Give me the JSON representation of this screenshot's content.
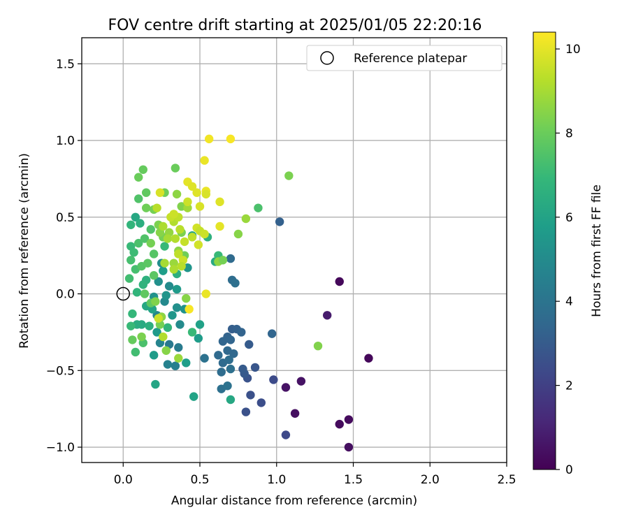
{
  "chart_data": {
    "type": "scatter",
    "title": "FOV centre drift starting at 2025/01/05 22:20:16",
    "xlabel": "Angular distance from reference (arcmin)",
    "ylabel": "Rotation from reference (arcmin)",
    "xlim": [
      -0.27,
      2.5
    ],
    "ylim": [
      -1.1,
      1.67
    ],
    "xticks": [
      0.0,
      0.5,
      1.0,
      1.5,
      2.0,
      2.5
    ],
    "xtick_labels": [
      "0.0",
      "0.5",
      "1.0",
      "1.5",
      "2.0",
      "2.5"
    ],
    "yticks": [
      -1.0,
      -0.5,
      0.0,
      0.5,
      1.0,
      1.5
    ],
    "ytick_labels": [
      "−1.0",
      "−0.5",
      "0.0",
      "0.5",
      "1.0",
      "1.5"
    ],
    "grid": true,
    "legend": {
      "position": "top-right",
      "entries": [
        {
          "label": "Reference platepar",
          "marker": "open-circle",
          "x": 0.0,
          "y": 0.0
        }
      ]
    },
    "colorbar": {
      "label": "Hours from first FF file",
      "range": [
        0,
        10.4
      ],
      "ticks": [
        0,
        2,
        4,
        6,
        8,
        10
      ],
      "tick_labels": [
        "0",
        "2",
        "4",
        "6",
        "8",
        "10"
      ],
      "colormap": "viridis",
      "stops": [
        "#440154",
        "#482878",
        "#3e4989",
        "#31688e",
        "#26828e",
        "#1f9e89",
        "#35b779",
        "#6ece58",
        "#b5de2b",
        "#fde725"
      ]
    },
    "points": [
      {
        "x": 1.41,
        "y": 0.08,
        "t": 0.2
      },
      {
        "x": 1.6,
        "y": -0.42,
        "t": 0.2
      },
      {
        "x": 1.47,
        "y": -0.82,
        "t": 0.3
      },
      {
        "x": 1.41,
        "y": -0.85,
        "t": 0.3
      },
      {
        "x": 1.47,
        "y": -1.0,
        "t": 0.4
      },
      {
        "x": 1.12,
        "y": -0.78,
        "t": 0.4
      },
      {
        "x": 1.16,
        "y": -0.57,
        "t": 0.5
      },
      {
        "x": 1.06,
        "y": -0.61,
        "t": 0.5
      },
      {
        "x": 1.33,
        "y": -0.14,
        "t": 0.8
      },
      {
        "x": 1.06,
        "y": -0.92,
        "t": 2.3
      },
      {
        "x": 0.98,
        "y": -0.56,
        "t": 2.4
      },
      {
        "x": 0.9,
        "y": -0.71,
        "t": 2.5
      },
      {
        "x": 0.83,
        "y": -0.66,
        "t": 2.6
      },
      {
        "x": 0.8,
        "y": -0.77,
        "t": 2.6
      },
      {
        "x": 0.81,
        "y": -0.55,
        "t": 2.7
      },
      {
        "x": 0.86,
        "y": -0.48,
        "t": 2.8
      },
      {
        "x": 0.79,
        "y": -0.52,
        "t": 2.9
      },
      {
        "x": 0.78,
        "y": -0.49,
        "t": 3.0
      },
      {
        "x": 0.82,
        "y": -0.33,
        "t": 3.0
      },
      {
        "x": 0.71,
        "y": -0.23,
        "t": 3.1
      },
      {
        "x": 0.74,
        "y": -0.23,
        "t": 3.2
      },
      {
        "x": 0.77,
        "y": -0.25,
        "t": 3.3
      },
      {
        "x": 0.68,
        "y": -0.28,
        "t": 3.3
      },
      {
        "x": 0.65,
        "y": -0.31,
        "t": 3.4
      },
      {
        "x": 0.7,
        "y": -0.3,
        "t": 3.4
      },
      {
        "x": 0.72,
        "y": -0.39,
        "t": 3.5
      },
      {
        "x": 0.68,
        "y": -0.37,
        "t": 3.5
      },
      {
        "x": 0.62,
        "y": -0.4,
        "t": 3.6
      },
      {
        "x": 0.65,
        "y": -0.45,
        "t": 3.6
      },
      {
        "x": 0.69,
        "y": -0.43,
        "t": 3.7
      },
      {
        "x": 0.64,
        "y": -0.51,
        "t": 3.7
      },
      {
        "x": 0.7,
        "y": -0.49,
        "t": 3.8
      },
      {
        "x": 0.64,
        "y": -0.62,
        "t": 3.8
      },
      {
        "x": 0.68,
        "y": -0.6,
        "t": 3.9
      },
      {
        "x": 0.53,
        "y": -0.42,
        "t": 3.9
      },
      {
        "x": 0.97,
        "y": -0.26,
        "t": 3.4
      },
      {
        "x": 1.02,
        "y": 0.47,
        "t": 3.2
      },
      {
        "x": 0.7,
        "y": 0.23,
        "t": 3.6
      },
      {
        "x": 0.71,
        "y": 0.09,
        "t": 3.7
      },
      {
        "x": 0.73,
        "y": 0.07,
        "t": 3.8
      },
      {
        "x": 0.3,
        "y": -0.33,
        "t": 4.2
      },
      {
        "x": 0.36,
        "y": -0.35,
        "t": 4.3
      },
      {
        "x": 0.34,
        "y": -0.47,
        "t": 4.5
      },
      {
        "x": 0.29,
        "y": -0.46,
        "t": 4.6
      },
      {
        "x": 0.24,
        "y": -0.32,
        "t": 4.7
      },
      {
        "x": 0.22,
        "y": -0.14,
        "t": 4.8
      },
      {
        "x": 0.27,
        "y": -0.05,
        "t": 4.9
      },
      {
        "x": 0.3,
        "y": 0.05,
        "t": 5.0
      },
      {
        "x": 0.25,
        "y": 0.2,
        "t": 5.1
      },
      {
        "x": 0.23,
        "y": 0.08,
        "t": 5.2
      },
      {
        "x": 0.2,
        "y": -0.02,
        "t": 5.3
      },
      {
        "x": 0.28,
        "y": -0.01,
        "t": 5.4
      },
      {
        "x": 0.32,
        "y": -0.14,
        "t": 5.5
      },
      {
        "x": 0.22,
        "y": -0.25,
        "t": 5.6
      },
      {
        "x": 0.2,
        "y": -0.4,
        "t": 5.7
      },
      {
        "x": 0.41,
        "y": -0.45,
        "t": 5.8
      },
      {
        "x": 0.46,
        "y": -0.67,
        "t": 6.0
      },
      {
        "x": 0.21,
        "y": -0.59,
        "t": 6.1
      },
      {
        "x": 0.7,
        "y": -0.69,
        "t": 6.2
      },
      {
        "x": 0.5,
        "y": -0.2,
        "t": 5.9
      },
      {
        "x": 0.49,
        "y": -0.29,
        "t": 5.7
      },
      {
        "x": 0.4,
        "y": -0.1,
        "t": 5.3
      },
      {
        "x": 0.37,
        "y": -0.2,
        "t": 5.0
      },
      {
        "x": 0.35,
        "y": -0.09,
        "t": 5.2
      },
      {
        "x": 0.42,
        "y": 0.17,
        "t": 5.4
      },
      {
        "x": 0.35,
        "y": 0.03,
        "t": 5.6
      },
      {
        "x": 0.26,
        "y": 0.15,
        "t": 5.8
      },
      {
        "x": 0.19,
        "y": -0.1,
        "t": 6.0
      },
      {
        "x": 0.15,
        "y": -0.08,
        "t": 6.2
      },
      {
        "x": 0.12,
        "y": -0.2,
        "t": 6.3
      },
      {
        "x": 0.09,
        "y": -0.2,
        "t": 6.4
      },
      {
        "x": 0.17,
        "y": -0.21,
        "t": 6.5
      },
      {
        "x": 0.15,
        "y": 0.09,
        "t": 6.6
      },
      {
        "x": 0.13,
        "y": 0.06,
        "t": 6.7
      },
      {
        "x": 0.09,
        "y": 0.01,
        "t": 6.8
      },
      {
        "x": 0.06,
        "y": -0.13,
        "t": 6.9
      },
      {
        "x": 0.05,
        "y": -0.21,
        "t": 7.0
      },
      {
        "x": 0.08,
        "y": -0.38,
        "t": 7.2
      },
      {
        "x": 0.13,
        "y": -0.32,
        "t": 7.4
      },
      {
        "x": 0.35,
        "y": 0.13,
        "t": 6.5
      },
      {
        "x": 0.45,
        "y": 0.38,
        "t": 6.1
      },
      {
        "x": 0.55,
        "y": 0.37,
        "t": 6.6
      },
      {
        "x": 0.6,
        "y": 0.21,
        "t": 6.3
      },
      {
        "x": 0.29,
        "y": -0.22,
        "t": 6.8
      },
      {
        "x": 0.45,
        "y": -0.25,
        "t": 7.0
      },
      {
        "x": 0.27,
        "y": 0.31,
        "t": 7.0
      },
      {
        "x": 0.08,
        "y": 0.5,
        "t": 6.2
      },
      {
        "x": 0.11,
        "y": 0.46,
        "t": 6.5
      },
      {
        "x": 0.05,
        "y": 0.45,
        "t": 6.8
      },
      {
        "x": 0.05,
        "y": 0.31,
        "t": 7.0
      },
      {
        "x": 0.07,
        "y": 0.27,
        "t": 7.1
      },
      {
        "x": 0.04,
        "y": 0.1,
        "t": 7.2
      },
      {
        "x": 0.05,
        "y": 0.22,
        "t": 7.3
      },
      {
        "x": 0.08,
        "y": 0.16,
        "t": 7.3
      },
      {
        "x": 0.1,
        "y": 0.33,
        "t": 7.4
      },
      {
        "x": 0.14,
        "y": 0.36,
        "t": 7.5
      },
      {
        "x": 0.18,
        "y": 0.42,
        "t": 7.5
      },
      {
        "x": 0.2,
        "y": 0.26,
        "t": 7.6
      },
      {
        "x": 0.12,
        "y": 0.18,
        "t": 7.6
      },
      {
        "x": 0.16,
        "y": 0.2,
        "t": 7.7
      },
      {
        "x": 0.2,
        "y": 0.12,
        "t": 7.7
      },
      {
        "x": 0.14,
        "y": 0.0,
        "t": 7.8
      },
      {
        "x": 0.18,
        "y": -0.06,
        "t": 7.8
      },
      {
        "x": 0.06,
        "y": -0.3,
        "t": 7.9
      },
      {
        "x": 0.1,
        "y": 0.62,
        "t": 7.5
      },
      {
        "x": 0.15,
        "y": 0.66,
        "t": 7.8
      },
      {
        "x": 0.13,
        "y": 0.81,
        "t": 7.9
      },
      {
        "x": 0.1,
        "y": 0.76,
        "t": 8.0
      },
      {
        "x": 0.34,
        "y": 0.82,
        "t": 8.0
      },
      {
        "x": 0.27,
        "y": 0.66,
        "t": 8.1
      },
      {
        "x": 0.2,
        "y": 0.55,
        "t": 8.2
      },
      {
        "x": 0.23,
        "y": 0.45,
        "t": 8.3
      },
      {
        "x": 0.26,
        "y": 0.37,
        "t": 8.2
      },
      {
        "x": 0.62,
        "y": 0.25,
        "t": 7.0
      },
      {
        "x": 0.62,
        "y": 0.21,
        "t": 8.6
      },
      {
        "x": 0.88,
        "y": 0.56,
        "t": 7.4
      },
      {
        "x": 1.08,
        "y": 0.77,
        "t": 8.3
      },
      {
        "x": 0.75,
        "y": 0.39,
        "t": 8.5
      },
      {
        "x": 0.8,
        "y": 0.49,
        "t": 8.8
      },
      {
        "x": 1.27,
        "y": -0.34,
        "t": 8.4
      },
      {
        "x": 0.35,
        "y": 0.65,
        "t": 8.6
      },
      {
        "x": 0.38,
        "y": 0.57,
        "t": 8.4
      },
      {
        "x": 0.42,
        "y": 0.56,
        "t": 8.9
      },
      {
        "x": 0.36,
        "y": 0.28,
        "t": 8.6
      },
      {
        "x": 0.33,
        "y": 0.2,
        "t": 8.8
      },
      {
        "x": 0.38,
        "y": 0.4,
        "t": 8.3
      },
      {
        "x": 0.3,
        "y": 0.4,
        "t": 8.7
      },
      {
        "x": 0.24,
        "y": 0.4,
        "t": 8.5
      },
      {
        "x": 0.18,
        "y": 0.33,
        "t": 8.2
      },
      {
        "x": 0.24,
        "y": -0.2,
        "t": 8.2
      },
      {
        "x": 0.25,
        "y": -0.15,
        "t": 8.6
      },
      {
        "x": 0.12,
        "y": -0.28,
        "t": 8.3
      },
      {
        "x": 0.28,
        "y": -0.37,
        "t": 8.5
      },
      {
        "x": 0.21,
        "y": -0.05,
        "t": 8.4
      },
      {
        "x": 0.41,
        "y": -0.03,
        "t": 8.5
      },
      {
        "x": 0.36,
        "y": -0.42,
        "t": 8.8
      },
      {
        "x": 0.4,
        "y": 0.25,
        "t": 8.1
      },
      {
        "x": 0.65,
        "y": 0.22,
        "t": 8.2
      },
      {
        "x": 0.15,
        "y": 0.56,
        "t": 8.1
      },
      {
        "x": 0.56,
        "y": 1.01,
        "t": 10.2
      },
      {
        "x": 0.7,
        "y": 1.01,
        "t": 10.3
      },
      {
        "x": 0.53,
        "y": 0.87,
        "t": 10.1
      },
      {
        "x": 0.42,
        "y": 0.73,
        "t": 10.0
      },
      {
        "x": 0.45,
        "y": 0.7,
        "t": 9.9
      },
      {
        "x": 0.48,
        "y": 0.66,
        "t": 9.9
      },
      {
        "x": 0.54,
        "y": 0.67,
        "t": 10.1
      },
      {
        "x": 0.54,
        "y": 0.65,
        "t": 9.8
      },
      {
        "x": 0.63,
        "y": 0.6,
        "t": 9.9
      },
      {
        "x": 0.5,
        "y": 0.57,
        "t": 9.8
      },
      {
        "x": 0.42,
        "y": 0.6,
        "t": 9.6
      },
      {
        "x": 0.48,
        "y": 0.43,
        "t": 9.7
      },
      {
        "x": 0.5,
        "y": 0.41,
        "t": 9.5
      },
      {
        "x": 0.53,
        "y": 0.39,
        "t": 9.6
      },
      {
        "x": 0.63,
        "y": 0.44,
        "t": 10.0
      },
      {
        "x": 0.49,
        "y": 0.32,
        "t": 9.7
      },
      {
        "x": 0.45,
        "y": 0.37,
        "t": 9.4
      },
      {
        "x": 0.4,
        "y": 0.34,
        "t": 9.5
      },
      {
        "x": 0.37,
        "y": 0.42,
        "t": 9.3
      },
      {
        "x": 0.33,
        "y": 0.47,
        "t": 9.2
      },
      {
        "x": 0.31,
        "y": 0.5,
        "t": 9.5
      },
      {
        "x": 0.36,
        "y": 0.5,
        "t": 9.4
      },
      {
        "x": 0.33,
        "y": 0.52,
        "t": 9.6
      },
      {
        "x": 0.24,
        "y": 0.66,
        "t": 9.8
      },
      {
        "x": 0.22,
        "y": 0.56,
        "t": 9.3
      },
      {
        "x": 0.26,
        "y": 0.44,
        "t": 9.1
      },
      {
        "x": 0.29,
        "y": 0.36,
        "t": 9.0
      },
      {
        "x": 0.34,
        "y": 0.36,
        "t": 9.2
      },
      {
        "x": 0.36,
        "y": 0.26,
        "t": 9.4
      },
      {
        "x": 0.39,
        "y": 0.22,
        "t": 9.6
      },
      {
        "x": 0.38,
        "y": 0.18,
        "t": 9.3
      },
      {
        "x": 0.33,
        "y": 0.16,
        "t": 9.1
      },
      {
        "x": 0.27,
        "y": 0.2,
        "t": 9.0
      },
      {
        "x": 0.54,
        "y": 0.0,
        "t": 10.1
      },
      {
        "x": 0.43,
        "y": -0.1,
        "t": 10.3
      },
      {
        "x": 0.23,
        "y": -0.16,
        "t": 9.6
      },
      {
        "x": 0.26,
        "y": -0.28,
        "t": 9.2
      }
    ]
  }
}
